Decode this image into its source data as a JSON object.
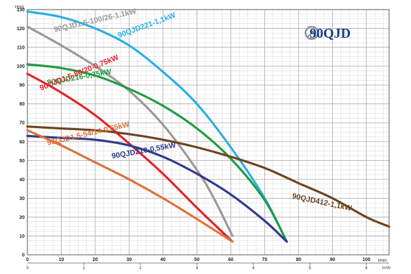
{
  "chart_data": {
    "type": "line",
    "logo_text": "90QJD",
    "ylabel": "H(m)",
    "xlabel_top": "l/min",
    "xlabel_bottom": "m³/h",
    "xlim": [
      0,
      106.7
    ],
    "ylim": [
      0,
      130
    ],
    "x_ticks": [
      0,
      10,
      20,
      30,
      40,
      50,
      60,
      70,
      80,
      90,
      100
    ],
    "y_ticks": [
      0,
      10,
      20,
      30,
      40,
      50,
      60,
      70,
      80,
      90,
      100,
      110,
      120,
      130
    ],
    "x2_ticks": [
      {
        "value": 1,
        "lpm": 16.67
      },
      {
        "value": 2,
        "lpm": 33.33
      },
      {
        "value": 3,
        "lpm": 50
      },
      {
        "value": 4,
        "lpm": 66.67
      },
      {
        "value": 5,
        "lpm": 83.33
      },
      {
        "value": 6,
        "lpm": 100
      }
    ],
    "grid": true,
    "series": [
      {
        "name": "90QJD221-1,1kW",
        "color": "#29aee6",
        "x": [
          0,
          10,
          20,
          30,
          40,
          50,
          60,
          70,
          76.5
        ],
        "y": [
          129,
          126,
          120,
          111,
          97,
          80,
          57,
          30,
          7
        ],
        "label_x": 27,
        "label_y": 115,
        "label_angle": -20
      },
      {
        "name": "90QJD1.5-100/26-1.1kW",
        "color": "#999999",
        "x": [
          0,
          10,
          20,
          30,
          40,
          50,
          55,
          60.5
        ],
        "y": [
          121,
          111,
          100,
          87,
          69,
          45,
          30,
          10
        ],
        "label_x": 8,
        "label_y": 118,
        "label_angle": -13
      },
      {
        "name": "90QJD216-0,75kW",
        "color": "#1f9c3f",
        "x": [
          0,
          10,
          20,
          30,
          40,
          50,
          60,
          70,
          76.5
        ],
        "y": [
          101,
          99,
          95,
          88,
          79,
          67,
          51,
          29,
          7
        ],
        "label_x": 6,
        "label_y": 90,
        "label_angle": -10
      },
      {
        "name": "90QJD1.5-80/20-0,75kW",
        "color": "#e52228",
        "x": [
          0,
          10,
          20,
          30,
          40,
          50,
          60.5
        ],
        "y": [
          96,
          86,
          74,
          59,
          43,
          25,
          7
        ],
        "label_x": 4,
        "label_y": 87,
        "label_angle": -22
      },
      {
        "name": "90QJD210-0,55kW",
        "color": "#2e3a8c",
        "x": [
          0,
          10,
          20,
          30,
          40,
          50,
          60,
          70,
          76.5
        ],
        "y": [
          63,
          62,
          61,
          58,
          52,
          43,
          32,
          18,
          7
        ],
        "label_x": 25,
        "label_y": 51,
        "label_angle": -10
      },
      {
        "name": "90QJD1.5-54/14-0,55kW",
        "color": "#e07038",
        "x": [
          0,
          10,
          20,
          30,
          40,
          50,
          60.5
        ],
        "y": [
          66,
          58,
          49,
          40,
          30,
          19,
          7
        ],
        "label_x": 6,
        "label_y": 58,
        "label_angle": -13
      },
      {
        "name": "90QJD412-1,1kW",
        "color": "#6b4420",
        "x": [
          0,
          10,
          20,
          30,
          40,
          50,
          60,
          70,
          80,
          90,
          100,
          106.7
        ],
        "y": [
          68,
          67,
          66,
          64,
          61,
          57,
          52,
          46,
          38,
          30,
          20,
          15
        ],
        "label_x": 78,
        "label_y": 30,
        "label_angle": 12
      }
    ]
  }
}
